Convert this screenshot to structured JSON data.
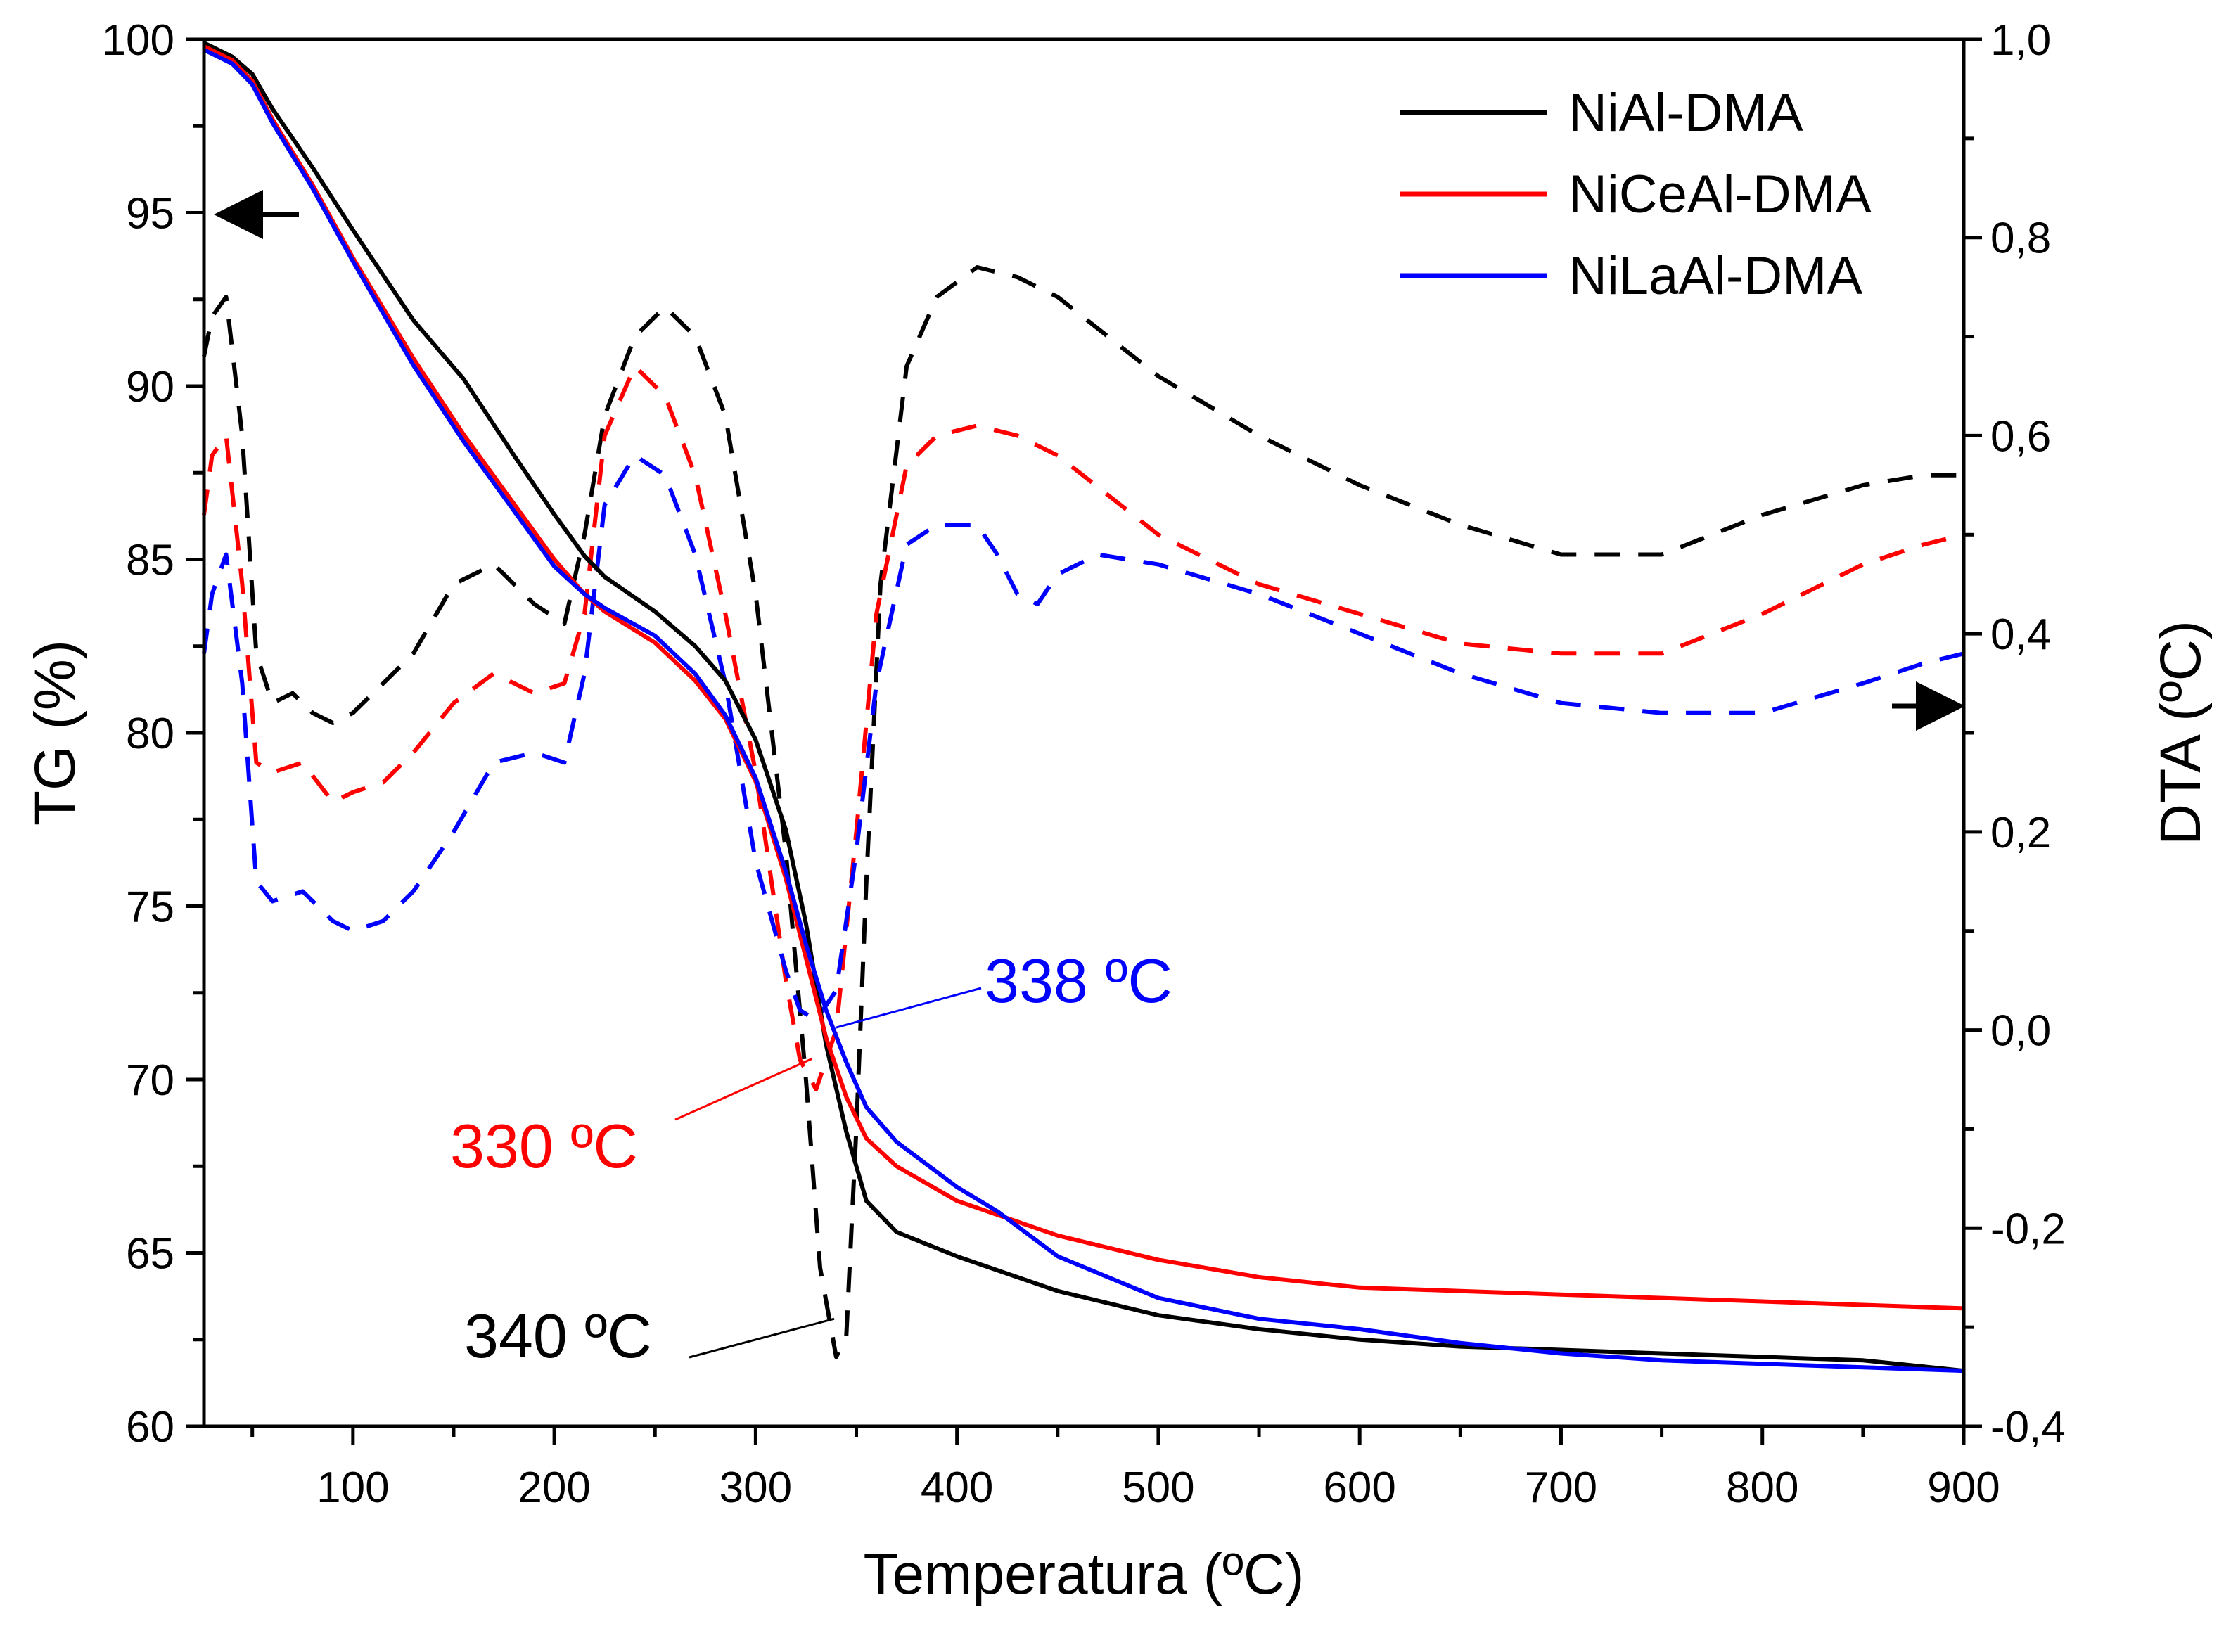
{
  "chart_data": {
    "type": "line",
    "title": "",
    "xlabel": "Temperatura (ºC)",
    "ylabel_left": "TG (%)",
    "ylabel_right": "DTA (ºC)",
    "xlim": [
      26,
      900
    ],
    "ylim_left": [
      60,
      100
    ],
    "ylim_right": [
      -0.4,
      1.0
    ],
    "x_ticks": [
      100,
      200,
      300,
      400,
      500,
      600,
      700,
      800,
      900
    ],
    "x_tick_labels": [
      "100",
      "200",
      "300",
      "400",
      "500",
      "600",
      "700",
      "800",
      "900"
    ],
    "y_left_ticks": [
      60,
      65,
      70,
      75,
      80,
      85,
      90,
      95,
      100
    ],
    "y_left_tick_labels": [
      "60",
      "65",
      "70",
      "75",
      "80",
      "85",
      "90",
      "95",
      "100"
    ],
    "y_right_ticks": [
      -0.4,
      -0.2,
      0.0,
      0.2,
      0.4,
      0.6,
      0.8,
      1.0
    ],
    "y_right_tick_labels": [
      "-0,4",
      "-0,2",
      "0,0",
      "0,2",
      "0,4",
      "0,6",
      "0,8",
      "1,0"
    ],
    "grid": false,
    "legend_position": "top-right",
    "legend": [
      "NiAl-DMA",
      "NiCeAl-DMA",
      "NiLaAl-DMA"
    ],
    "colors": {
      "NiAl-DMA": "#000000",
      "NiCeAl-DMA": "#ff0000",
      "NiLaAl-DMA": "#0000ff",
      "axis": "#000000"
    },
    "tg_series": [
      {
        "name": "NiAl-DMA",
        "axis": "left",
        "style": "solid",
        "color": "#000000",
        "x": [
          26,
          40,
          50,
          60,
          80,
          100,
          130,
          155,
          180,
          200,
          215,
          225,
          250,
          270,
          285,
          300,
          315,
          325,
          335,
          345,
          355,
          370,
          400,
          450,
          500,
          550,
          600,
          650,
          700,
          750,
          800,
          850,
          900
        ],
        "y": [
          99.9,
          99.5,
          99.0,
          98.0,
          96.3,
          94.5,
          91.9,
          90.2,
          88.0,
          86.3,
          85.1,
          84.5,
          83.5,
          82.5,
          81.5,
          79.8,
          77.2,
          74.5,
          71.0,
          68.5,
          66.5,
          65.6,
          64.9,
          63.9,
          63.2,
          62.8,
          62.5,
          62.3,
          62.2,
          62.1,
          62.0,
          61.9,
          61.6
        ]
      },
      {
        "name": "NiCeAl-DMA",
        "axis": "left",
        "style": "solid",
        "color": "#ff0000",
        "x": [
          26,
          40,
          50,
          60,
          80,
          100,
          130,
          155,
          180,
          200,
          215,
          225,
          250,
          270,
          285,
          300,
          315,
          325,
          335,
          345,
          355,
          370,
          400,
          450,
          500,
          550,
          600,
          650,
          700,
          750,
          800,
          850,
          900
        ],
        "y": [
          99.8,
          99.4,
          98.8,
          97.7,
          95.8,
          93.7,
          90.8,
          88.6,
          86.6,
          85.0,
          84.0,
          83.5,
          82.6,
          81.5,
          80.4,
          78.6,
          75.8,
          73.5,
          71.2,
          69.5,
          68.3,
          67.5,
          66.5,
          65.5,
          64.8,
          64.3,
          64.0,
          63.9,
          63.8,
          63.7,
          63.6,
          63.5,
          63.4
        ]
      },
      {
        "name": "NiLaAl-DMA",
        "axis": "left",
        "style": "solid",
        "color": "#0000ff",
        "x": [
          26,
          40,
          50,
          60,
          80,
          100,
          130,
          155,
          180,
          200,
          215,
          225,
          250,
          270,
          285,
          300,
          315,
          325,
          335,
          345,
          355,
          370,
          400,
          420,
          450,
          500,
          550,
          600,
          650,
          700,
          750,
          800,
          850,
          900
        ],
        "y": [
          99.7,
          99.3,
          98.7,
          97.6,
          95.7,
          93.6,
          90.6,
          88.4,
          86.4,
          84.8,
          84.0,
          83.6,
          82.8,
          81.7,
          80.5,
          78.7,
          76.0,
          73.9,
          72.0,
          70.5,
          69.2,
          68.2,
          66.9,
          66.2,
          64.9,
          63.7,
          63.1,
          62.8,
          62.4,
          62.1,
          61.9,
          61.8,
          61.7,
          61.6
        ]
      }
    ],
    "dta_series": [
      {
        "name": "NiAl-DMA DTA",
        "axis": "right",
        "style": "dashed",
        "color": "#000000",
        "x": [
          26,
          30,
          37,
          45,
          52,
          60,
          70,
          80,
          90,
          100,
          115,
          130,
          150,
          170,
          190,
          205,
          215,
          225,
          240,
          255,
          270,
          285,
          300,
          315,
          325,
          332,
          340,
          345,
          350,
          355,
          362,
          375,
          390,
          410,
          430,
          450,
          500,
          550,
          600,
          650,
          700,
          750,
          800,
          850,
          880,
          900
        ],
        "y": [
          0.68,
          0.72,
          0.74,
          0.6,
          0.38,
          0.33,
          0.34,
          0.32,
          0.31,
          0.32,
          0.35,
          0.38,
          0.45,
          0.47,
          0.43,
          0.41,
          0.5,
          0.62,
          0.7,
          0.73,
          0.7,
          0.62,
          0.44,
          0.18,
          -0.05,
          -0.24,
          -0.33,
          -0.31,
          -0.1,
          0.15,
          0.45,
          0.67,
          0.74,
          0.77,
          0.76,
          0.74,
          0.66,
          0.6,
          0.55,
          0.51,
          0.48,
          0.48,
          0.52,
          0.55,
          0.56,
          0.56
        ]
      },
      {
        "name": "NiCeAl-DMA DTA",
        "axis": "right",
        "style": "dashed",
        "color": "#ff0000",
        "x": [
          26,
          30,
          37,
          45,
          52,
          60,
          75,
          90,
          100,
          115,
          130,
          150,
          170,
          190,
          205,
          215,
          225,
          240,
          255,
          270,
          285,
          300,
          315,
          322,
          330,
          340,
          350,
          360,
          375,
          390,
          410,
          430,
          450,
          500,
          550,
          600,
          650,
          700,
          750,
          800,
          850,
          880,
          900
        ],
        "y": [
          0.52,
          0.58,
          0.6,
          0.45,
          0.27,
          0.26,
          0.27,
          0.23,
          0.24,
          0.25,
          0.28,
          0.33,
          0.36,
          0.34,
          0.35,
          0.42,
          0.6,
          0.67,
          0.64,
          0.56,
          0.42,
          0.26,
          0.05,
          -0.03,
          -0.06,
          0.0,
          0.2,
          0.42,
          0.57,
          0.6,
          0.61,
          0.6,
          0.58,
          0.5,
          0.45,
          0.42,
          0.39,
          0.38,
          0.38,
          0.42,
          0.47,
          0.49,
          0.5
        ]
      },
      {
        "name": "NiLaAl-DMA DTA",
        "axis": "right",
        "style": "dashed",
        "color": "#0000ff",
        "x": [
          26,
          30,
          37,
          45,
          52,
          60,
          75,
          90,
          100,
          115,
          130,
          150,
          170,
          190,
          205,
          215,
          225,
          240,
          255,
          270,
          285,
          300,
          315,
          322,
          330,
          340,
          350,
          360,
          375,
          390,
          410,
          420,
          430,
          440,
          450,
          470,
          500,
          550,
          600,
          650,
          700,
          750,
          800,
          850,
          880,
          900
        ],
        "y": [
          0.38,
          0.44,
          0.48,
          0.35,
          0.15,
          0.13,
          0.14,
          0.11,
          0.1,
          0.11,
          0.14,
          0.2,
          0.27,
          0.28,
          0.27,
          0.36,
          0.53,
          0.58,
          0.56,
          0.48,
          0.35,
          0.17,
          0.06,
          0.02,
          0.01,
          0.04,
          0.18,
          0.35,
          0.49,
          0.51,
          0.51,
          0.48,
          0.44,
          0.43,
          0.46,
          0.48,
          0.47,
          0.44,
          0.4,
          0.36,
          0.33,
          0.32,
          0.32,
          0.35,
          0.37,
          0.38
        ]
      }
    ],
    "annotations": [
      {
        "text": "340 ºC",
        "color": "#000000",
        "point": [
          339,
          63.1
        ]
      },
      {
        "text": "330 ºC",
        "color": "#ff0000",
        "point": [
          328,
          70.6
        ]
      },
      {
        "text": "338 ºC",
        "color": "#0000ff",
        "point": [
          340,
          71.5
        ]
      }
    ],
    "axis_arrows": [
      {
        "direction": "left",
        "meaning": "TG curves refer to left axis"
      },
      {
        "direction": "right",
        "meaning": "DTA curves refer to right axis"
      }
    ]
  }
}
